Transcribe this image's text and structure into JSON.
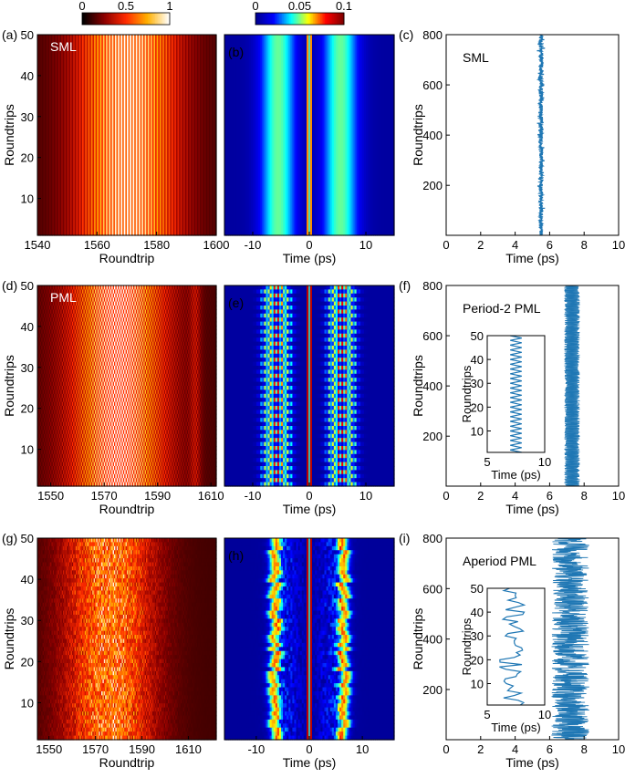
{
  "colors": {
    "trace": "#1f77b4",
    "hot_colormap": [
      "#000000",
      "#8b0000",
      "#ff2a00",
      "#ffb000",
      "#ffffff"
    ],
    "jet_colormap": [
      "#00008f",
      "#0000ff",
      "#00ffff",
      "#ffff00",
      "#ff0000",
      "#800000"
    ]
  },
  "colorbars": [
    {
      "panel": "hot",
      "colormap": "hot",
      "ticks": [
        {
          "v": 0,
          "label": "0"
        },
        {
          "v": 0.5,
          "label": "0.5"
        },
        {
          "v": 1,
          "label": "1"
        }
      ],
      "range": [
        0,
        1
      ]
    },
    {
      "panel": "jet",
      "colormap": "jet",
      "ticks": [
        {
          "v": 0,
          "label": "0"
        },
        {
          "v": 0.05,
          "label": "0.05"
        },
        {
          "v": 0.1,
          "label": "0.1"
        }
      ],
      "range": [
        0,
        0.1
      ]
    }
  ],
  "chart_data": [
    {
      "type": "heatmap",
      "panel_label": "(a)",
      "annotation": "SML",
      "colormap": "hot",
      "style": "sml",
      "xlabel": "Roundtrip",
      "ylabel": "Roundtrips",
      "xlim": [
        1540,
        1600
      ],
      "ylim": [
        1,
        50
      ],
      "xticks": [
        {
          "v": 1540,
          "label": "1540"
        },
        {
          "v": 1560,
          "label": "1560"
        },
        {
          "v": 1580,
          "label": "1580"
        },
        {
          "v": 1600,
          "label": "1600"
        }
      ],
      "yticks": [
        {
          "v": 10,
          "label": "10"
        },
        {
          "v": 20,
          "label": "20"
        },
        {
          "v": 30,
          "label": "30"
        },
        {
          "v": 40,
          "label": "40"
        },
        {
          "v": 50,
          "label": "50"
        }
      ]
    },
    {
      "type": "heatmap",
      "panel_label": "(b)",
      "colormap": "jet",
      "style": "sml",
      "xlabel": "Time (ps)",
      "ylabel": "",
      "xlim": [
        -15,
        15
      ],
      "ylim": [
        1,
        50
      ],
      "xticks": [
        {
          "v": -10,
          "label": "-10"
        },
        {
          "v": 0,
          "label": "0"
        },
        {
          "v": 10,
          "label": "10"
        }
      ],
      "yticks": []
    },
    {
      "type": "line",
      "panel_label": "(c)",
      "annotation": "SML",
      "style": "sml",
      "xlabel": "Time (ps)",
      "ylabel": "Roundtrips",
      "xlim": [
        0,
        10
      ],
      "ylim": [
        1,
        800
      ],
      "mean_time_ps": 5.5,
      "fluctuation_ps": 0.12,
      "xticks": [
        {
          "v": 0,
          "label": "0"
        },
        {
          "v": 2,
          "label": "2"
        },
        {
          "v": 4,
          "label": "4"
        },
        {
          "v": 6,
          "label": "6"
        },
        {
          "v": 8,
          "label": "8"
        },
        {
          "v": 10,
          "label": "10"
        }
      ],
      "yticks": [
        {
          "v": 200,
          "label": "200"
        },
        {
          "v": 400,
          "label": "400"
        },
        {
          "v": 600,
          "label": "600"
        },
        {
          "v": 800,
          "label": "800"
        }
      ]
    },
    {
      "type": "heatmap",
      "panel_label": "(d)",
      "annotation": "PML",
      "colormap": "hot",
      "style": "pml",
      "xlabel": "Roundtrip",
      "ylabel": "Roundtrips",
      "xlim": [
        1545,
        1612
      ],
      "ylim": [
        1,
        50
      ],
      "xticks": [
        {
          "v": 1550,
          "label": "1550"
        },
        {
          "v": 1570,
          "label": "1570"
        },
        {
          "v": 1590,
          "label": "1590"
        },
        {
          "v": 1610,
          "label": "1610"
        }
      ],
      "yticks": [
        {
          "v": 10,
          "label": "10"
        },
        {
          "v": 20,
          "label": "20"
        },
        {
          "v": 30,
          "label": "30"
        },
        {
          "v": 40,
          "label": "40"
        },
        {
          "v": 50,
          "label": "50"
        }
      ]
    },
    {
      "type": "heatmap",
      "panel_label": "(e)",
      "colormap": "jet",
      "style": "pml",
      "xlabel": "Time (ps)",
      "ylabel": "",
      "xlim": [
        -15,
        15
      ],
      "ylim": [
        1,
        50
      ],
      "xticks": [
        {
          "v": -10,
          "label": "-10"
        },
        {
          "v": 0,
          "label": "0"
        },
        {
          "v": 10,
          "label": "10"
        }
      ],
      "yticks": []
    },
    {
      "type": "line",
      "panel_label": "(f)",
      "annotation": "Period-2 PML",
      "style": "pml",
      "xlabel": "Time (ps)",
      "ylabel": "Roundtrips",
      "xlim": [
        0,
        10
      ],
      "ylim": [
        1,
        800
      ],
      "mean_time_ps": 7.3,
      "fluctuation_ps": 0.45,
      "xticks": [
        {
          "v": 0,
          "label": "0"
        },
        {
          "v": 2,
          "label": "2"
        },
        {
          "v": 4,
          "label": "4"
        },
        {
          "v": 6,
          "label": "6"
        },
        {
          "v": 8,
          "label": "8"
        },
        {
          "v": 10,
          "label": "10"
        }
      ],
      "yticks": [
        {
          "v": 200,
          "label": "200"
        },
        {
          "v": 400,
          "label": "400"
        },
        {
          "v": 600,
          "label": "600"
        },
        {
          "v": 800,
          "label": "800"
        }
      ],
      "inset": {
        "xlabel": "Time (ps)",
        "ylabel": "Roundtrips",
        "xlim": [
          5,
          10
        ],
        "ylim": [
          1,
          50
        ],
        "values_ps": [
          7.0,
          8.0
        ],
        "xticks": [
          {
            "v": 5,
            "label": "5"
          },
          {
            "v": 10,
            "label": "10"
          }
        ],
        "yticks": [
          {
            "v": 10,
            "label": "10"
          },
          {
            "v": 20,
            "label": "20"
          },
          {
            "v": 30,
            "label": "30"
          },
          {
            "v": 40,
            "label": "40"
          },
          {
            "v": 50,
            "label": "50"
          }
        ]
      }
    },
    {
      "type": "heatmap",
      "panel_label": "(g)",
      "colormap": "hot",
      "style": "aper",
      "xlabel": "Roundtrip",
      "ylabel": "Roundtrips",
      "xlim": [
        1545,
        1622
      ],
      "ylim": [
        1,
        50
      ],
      "xticks": [
        {
          "v": 1550,
          "label": "1550"
        },
        {
          "v": 1570,
          "label": "1570"
        },
        {
          "v": 1590,
          "label": "1590"
        },
        {
          "v": 1610,
          "label": "1610"
        }
      ],
      "yticks": [
        {
          "v": 10,
          "label": "10"
        },
        {
          "v": 20,
          "label": "20"
        },
        {
          "v": 30,
          "label": "30"
        },
        {
          "v": 40,
          "label": "40"
        },
        {
          "v": 50,
          "label": "50"
        }
      ]
    },
    {
      "type": "heatmap",
      "panel_label": "(h)",
      "colormap": "jet",
      "style": "aper",
      "xlabel": "Time (ps)",
      "ylabel": "",
      "xlim": [
        -16,
        16
      ],
      "ylim": [
        1,
        50
      ],
      "xticks": [
        {
          "v": -10,
          "label": "-10"
        },
        {
          "v": 0,
          "label": "0"
        },
        {
          "v": 10,
          "label": "10"
        }
      ],
      "yticks": []
    },
    {
      "type": "line",
      "panel_label": "(i)",
      "annotation": "Aperiod PML",
      "style": "aper",
      "xlabel": "Time (ps)",
      "ylabel": "Roundtrips",
      "xlim": [
        0,
        10
      ],
      "ylim": [
        1,
        800
      ],
      "range_ps": [
        6.1,
        8.3
      ],
      "xticks": [
        {
          "v": 0,
          "label": "0"
        },
        {
          "v": 2,
          "label": "2"
        },
        {
          "v": 4,
          "label": "4"
        },
        {
          "v": 6,
          "label": "6"
        },
        {
          "v": 8,
          "label": "8"
        },
        {
          "v": 10,
          "label": "10"
        }
      ],
      "yticks": [
        {
          "v": 200,
          "label": "200"
        },
        {
          "v": 400,
          "label": "400"
        },
        {
          "v": 600,
          "label": "600"
        },
        {
          "v": 800,
          "label": "800"
        }
      ],
      "inset": {
        "xlabel": "Time (ps)",
        "ylabel": "Roundtrips",
        "xlim": [
          5,
          10
        ],
        "ylim": [
          1,
          50
        ],
        "range_ps": [
          6.0,
          8.3
        ],
        "xticks": [
          {
            "v": 5,
            "label": "5"
          },
          {
            "v": 10,
            "label": "10"
          }
        ],
        "yticks": [
          {
            "v": 10,
            "label": "10"
          },
          {
            "v": 20,
            "label": "20"
          },
          {
            "v": 30,
            "label": "30"
          },
          {
            "v": 40,
            "label": "40"
          },
          {
            "v": 50,
            "label": "50"
          }
        ]
      }
    }
  ]
}
